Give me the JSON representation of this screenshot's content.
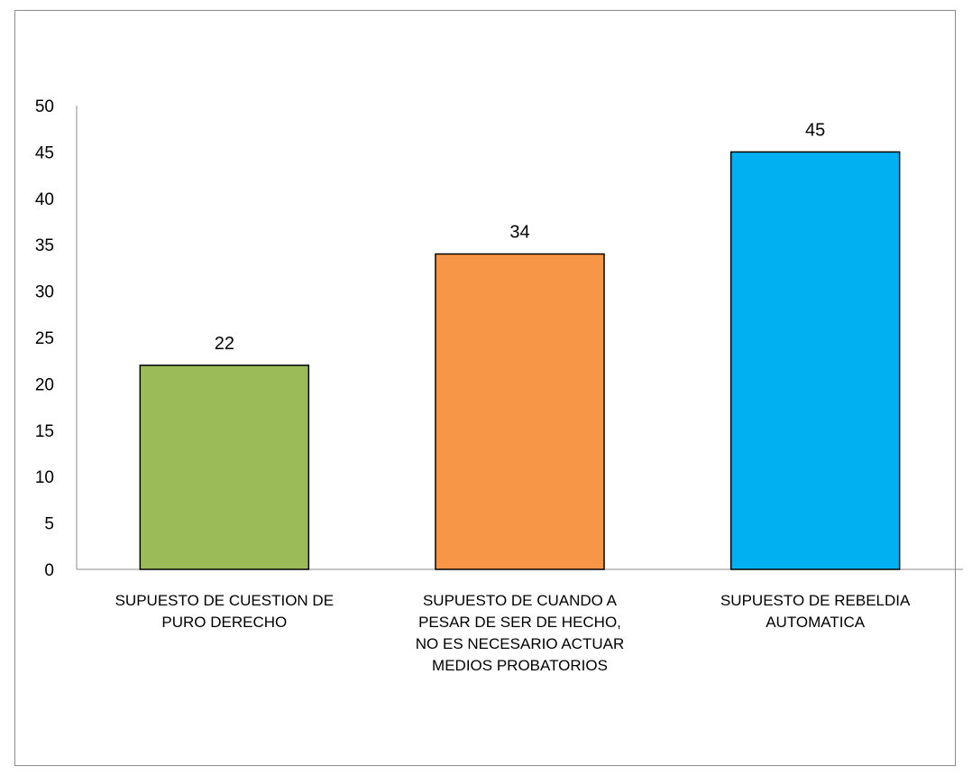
{
  "chart_data": {
    "type": "bar",
    "categories": [
      "SUPUESTO DE CUESTION DE PURO DERECHO",
      "SUPUESTO DE CUANDO A PESAR DE SER DE HECHO, NO ES NECESARIO ACTUAR MEDIOS PROBATORIOS",
      "SUPUESTO DE REBELDIA AUTOMATICA"
    ],
    "values": [
      22,
      34,
      45
    ],
    "colors": [
      "#9bbb59",
      "#f79646",
      "#00b0f0"
    ],
    "data_labels": [
      "22",
      "34",
      "45"
    ],
    "yticks": [
      "0",
      "5",
      "10",
      "15",
      "20",
      "25",
      "30",
      "35",
      "40",
      "45",
      "50"
    ],
    "ylim": [
      0,
      50
    ],
    "grid": false,
    "legend": "none"
  }
}
